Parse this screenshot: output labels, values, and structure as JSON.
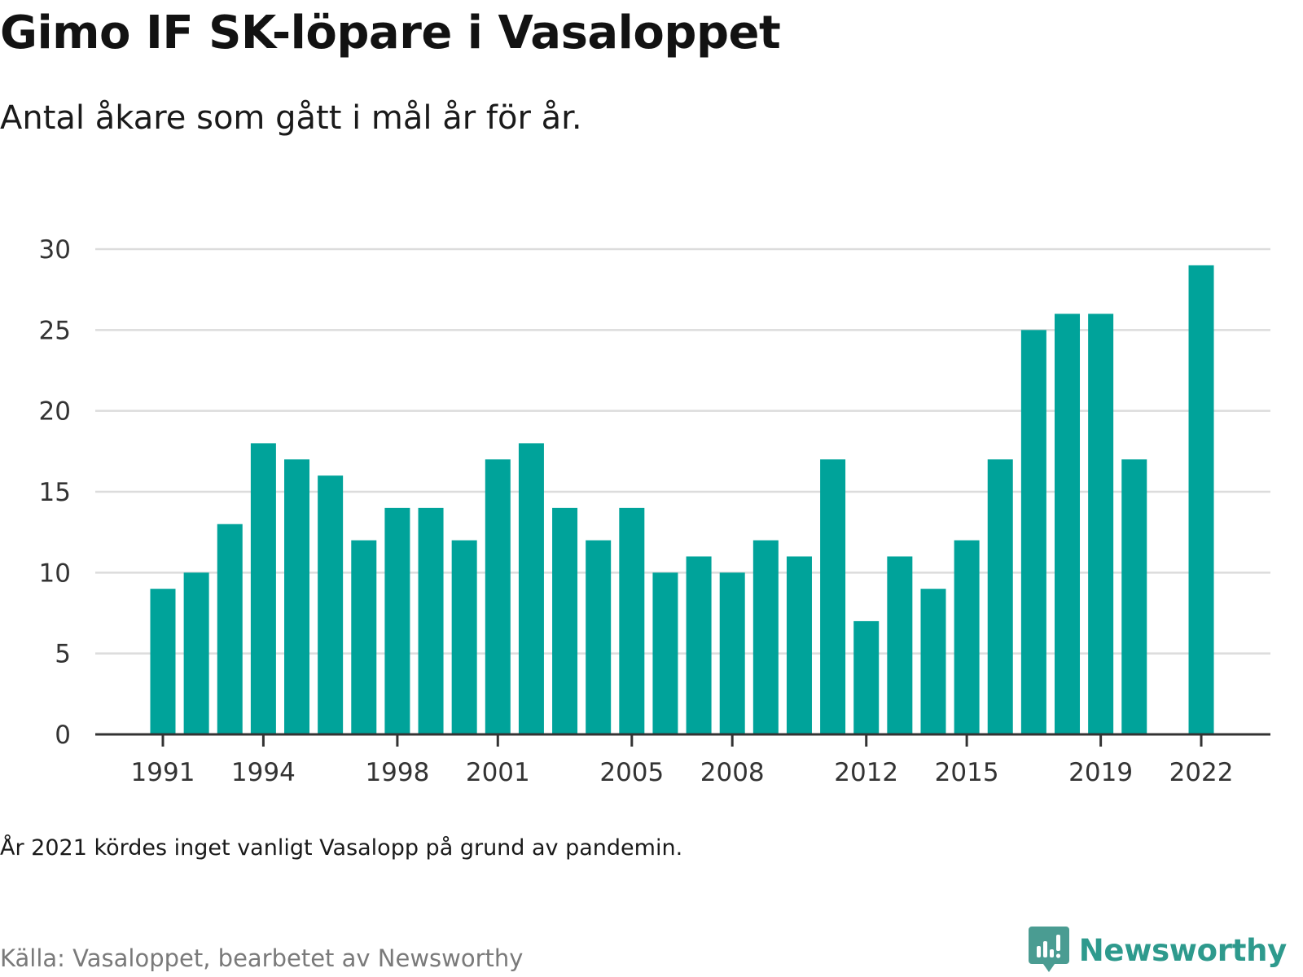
{
  "title": "Gimo IF SK-löpare i Vasaloppet",
  "subtitle": "Antal åkare som gått i mål år för år.",
  "note": "År 2021 kördes inget vanligt Vasalopp på grund av pandemin.",
  "source": "Källa: Vasaloppet, bearbetet av Newsworthy",
  "brand": {
    "name": "Newsworthy",
    "icon": "bar-chart-speech-bubble-icon",
    "color": "#2e9a8d"
  },
  "chart_data": {
    "type": "bar",
    "x": [
      1991,
      1992,
      1993,
      1994,
      1995,
      1996,
      1997,
      1998,
      1999,
      2000,
      2001,
      2002,
      2003,
      2004,
      2005,
      2006,
      2007,
      2008,
      2009,
      2010,
      2011,
      2012,
      2013,
      2014,
      2015,
      2016,
      2017,
      2018,
      2019,
      2020,
      2021,
      2022
    ],
    "values": [
      9,
      10,
      13,
      18,
      17,
      16,
      12,
      14,
      14,
      12,
      17,
      18,
      14,
      12,
      14,
      10,
      11,
      10,
      12,
      11,
      17,
      7,
      11,
      9,
      12,
      17,
      25,
      26,
      26,
      17,
      null,
      29
    ],
    "xtick_labels": [
      "1991",
      "1994",
      "1998",
      "2001",
      "2005",
      "2008",
      "2012",
      "2015",
      "2019",
      "2022"
    ],
    "ytick_labels": [
      "0",
      "5",
      "10",
      "15",
      "20",
      "25",
      "30"
    ],
    "ylim": [
      0,
      30
    ],
    "grid": true,
    "bar_color": "#00a39a",
    "grid_color": "#dcdcdc",
    "axis_color": "#333333"
  }
}
